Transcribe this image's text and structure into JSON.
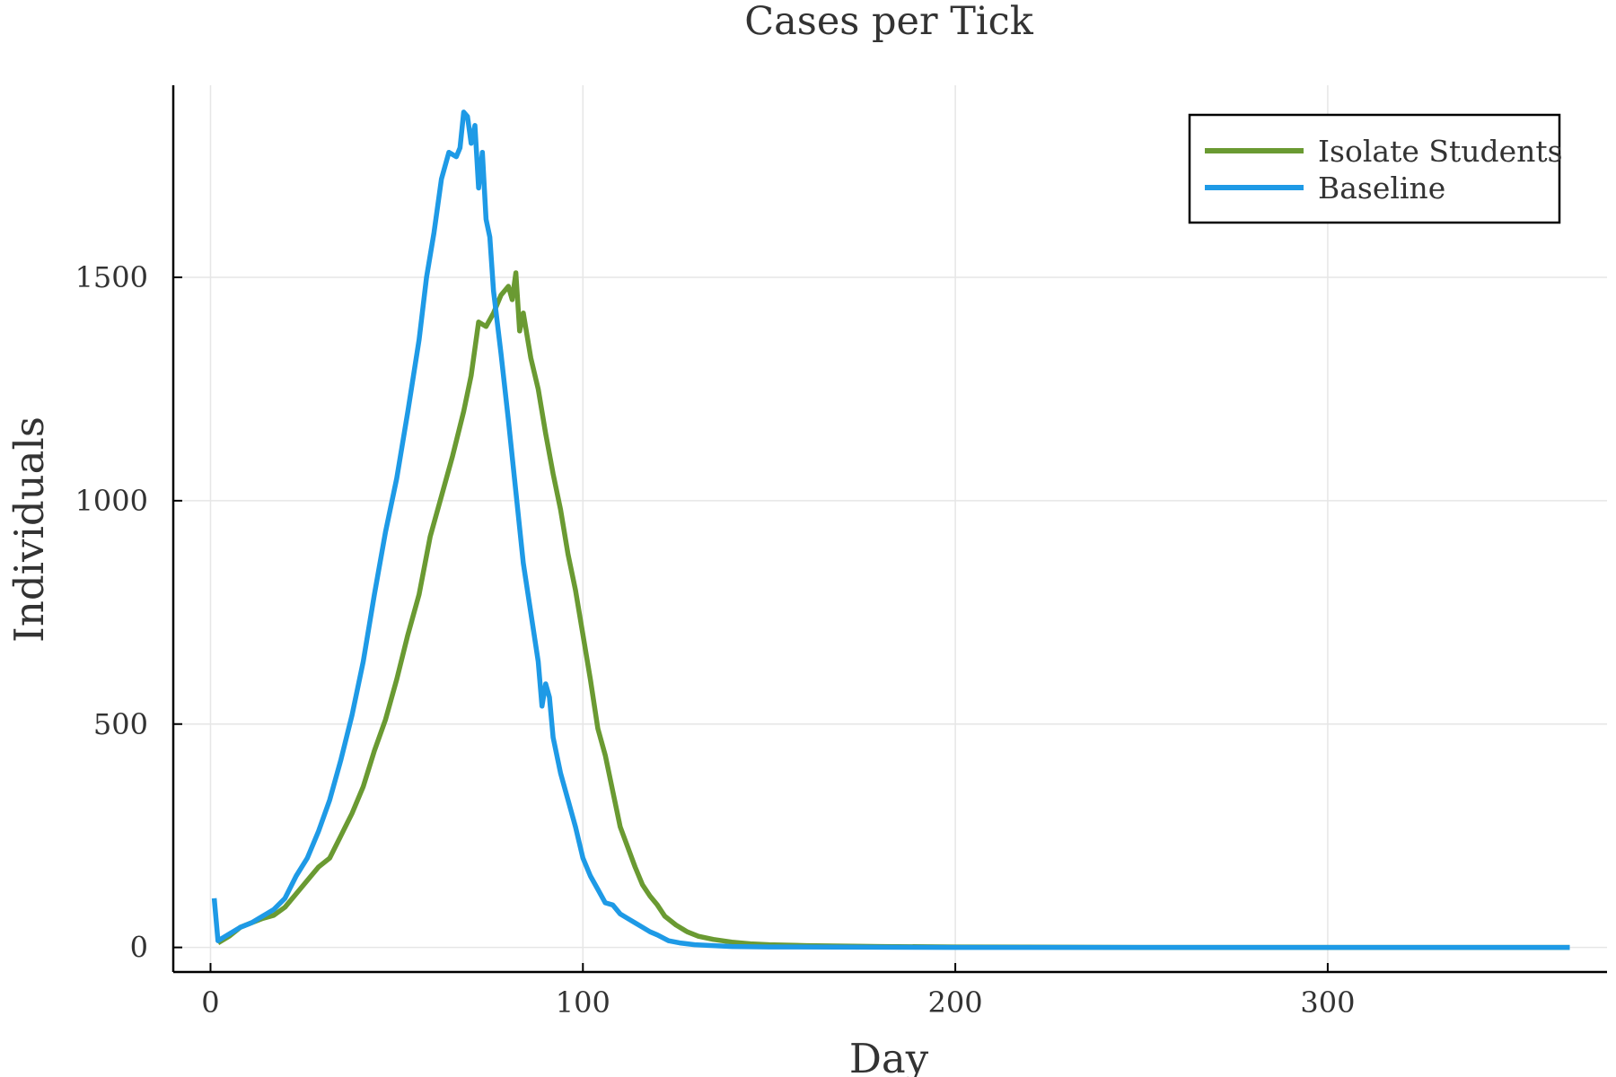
{
  "chart_data": {
    "type": "line",
    "title": "Cases per Tick",
    "xlabel": "Day",
    "ylabel": "Individuals",
    "xlim": [
      -10,
      375
    ],
    "ylim": [
      -55,
      1930
    ],
    "xticks": [
      0,
      100,
      200,
      300
    ],
    "yticks": [
      0,
      500,
      1000,
      1500
    ],
    "xtick_labels": [
      "0",
      "100",
      "200",
      "300"
    ],
    "ytick_labels": [
      "0",
      "500",
      "1000",
      "1500"
    ],
    "grid": true,
    "legend_position": "top-right",
    "series": [
      {
        "name": "Isolate Students",
        "color": "#6a9a32",
        "points": [
          [
            2,
            10
          ],
          [
            5,
            25
          ],
          [
            8,
            45
          ],
          [
            11,
            55
          ],
          [
            14,
            65
          ],
          [
            17,
            72
          ],
          [
            20,
            90
          ],
          [
            23,
            120
          ],
          [
            26,
            150
          ],
          [
            29,
            180
          ],
          [
            32,
            200
          ],
          [
            35,
            250
          ],
          [
            38,
            300
          ],
          [
            41,
            360
          ],
          [
            44,
            440
          ],
          [
            47,
            510
          ],
          [
            50,
            600
          ],
          [
            53,
            700
          ],
          [
            56,
            790
          ],
          [
            59,
            920
          ],
          [
            62,
            1010
          ],
          [
            65,
            1100
          ],
          [
            68,
            1200
          ],
          [
            70,
            1280
          ],
          [
            72,
            1400
          ],
          [
            74,
            1390
          ],
          [
            76,
            1420
          ],
          [
            78,
            1460
          ],
          [
            80,
            1480
          ],
          [
            81,
            1450
          ],
          [
            82,
            1510
          ],
          [
            83,
            1380
          ],
          [
            84,
            1420
          ],
          [
            86,
            1320
          ],
          [
            88,
            1250
          ],
          [
            90,
            1150
          ],
          [
            92,
            1060
          ],
          [
            94,
            980
          ],
          [
            96,
            880
          ],
          [
            98,
            800
          ],
          [
            100,
            700
          ],
          [
            102,
            600
          ],
          [
            104,
            490
          ],
          [
            106,
            430
          ],
          [
            108,
            350
          ],
          [
            110,
            270
          ],
          [
            112,
            225
          ],
          [
            114,
            180
          ],
          [
            116,
            140
          ],
          [
            118,
            115
          ],
          [
            120,
            95
          ],
          [
            122,
            70
          ],
          [
            125,
            50
          ],
          [
            128,
            35
          ],
          [
            131,
            25
          ],
          [
            135,
            18
          ],
          [
            140,
            12
          ],
          [
            145,
            8
          ],
          [
            150,
            6
          ],
          [
            160,
            4
          ],
          [
            170,
            3
          ],
          [
            180,
            2
          ],
          [
            200,
            1
          ],
          [
            250,
            0
          ],
          [
            300,
            0
          ],
          [
            365,
            0
          ]
        ]
      },
      {
        "name": "Baseline",
        "color": "#1e9ae6",
        "points": [
          [
            1,
            110
          ],
          [
            2,
            15
          ],
          [
            5,
            30
          ],
          [
            8,
            45
          ],
          [
            11,
            55
          ],
          [
            14,
            70
          ],
          [
            17,
            85
          ],
          [
            20,
            110
          ],
          [
            23,
            160
          ],
          [
            26,
            200
          ],
          [
            29,
            260
          ],
          [
            32,
            330
          ],
          [
            35,
            420
          ],
          [
            38,
            520
          ],
          [
            41,
            640
          ],
          [
            44,
            790
          ],
          [
            47,
            930
          ],
          [
            50,
            1050
          ],
          [
            53,
            1200
          ],
          [
            56,
            1360
          ],
          [
            58,
            1500
          ],
          [
            60,
            1600
          ],
          [
            62,
            1720
          ],
          [
            64,
            1780
          ],
          [
            66,
            1770
          ],
          [
            67,
            1790
          ],
          [
            68,
            1870
          ],
          [
            69,
            1860
          ],
          [
            70,
            1800
          ],
          [
            71,
            1840
          ],
          [
            72,
            1700
          ],
          [
            73,
            1780
          ],
          [
            74,
            1630
          ],
          [
            75,
            1590
          ],
          [
            76,
            1470
          ],
          [
            78,
            1330
          ],
          [
            80,
            1180
          ],
          [
            82,
            1020
          ],
          [
            84,
            860
          ],
          [
            86,
            750
          ],
          [
            88,
            640
          ],
          [
            89,
            540
          ],
          [
            90,
            590
          ],
          [
            91,
            560
          ],
          [
            92,
            470
          ],
          [
            94,
            390
          ],
          [
            96,
            330
          ],
          [
            98,
            270
          ],
          [
            100,
            200
          ],
          [
            102,
            160
          ],
          [
            104,
            130
          ],
          [
            106,
            100
          ],
          [
            108,
            95
          ],
          [
            110,
            75
          ],
          [
            112,
            65
          ],
          [
            114,
            55
          ],
          [
            116,
            45
          ],
          [
            118,
            35
          ],
          [
            120,
            28
          ],
          [
            123,
            15
          ],
          [
            126,
            10
          ],
          [
            130,
            6
          ],
          [
            135,
            4
          ],
          [
            140,
            2
          ],
          [
            150,
            1
          ],
          [
            200,
            0
          ],
          [
            300,
            0
          ],
          [
            365,
            0
          ]
        ]
      }
    ]
  }
}
